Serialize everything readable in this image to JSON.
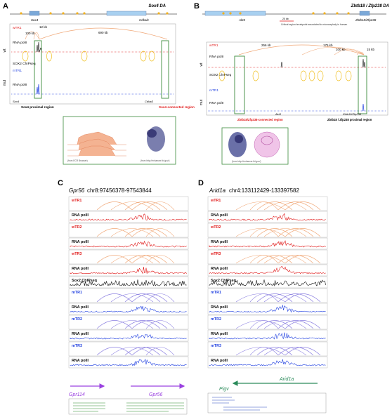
{
  "panels": {
    "A": {
      "letter": "A",
      "da_title": "Sox4 DA",
      "gene_left": "Sox4",
      "gene_right": "Cdkal1",
      "track_wtr1": "wTR1",
      "track_rnapol_1": "RNA polII",
      "track_sox2": "SOX2 ChIPseq",
      "track_mtr1": "mTR1",
      "track_rnapol_2": "RNA polII",
      "group_wt": "wt",
      "group_mut": "mut",
      "dist_1": "12 kb",
      "dist_2": "100 kb",
      "dist_3": "690 kb",
      "axis_left": "Sox4",
      "axis_right": "Cdkal1",
      "region_left": "Sox4 proximal region",
      "region_right": "Sox4-connected region",
      "source_left": "(from ECR Browser)",
      "source_right": "(from http://enhancer.lbl.gov/)"
    },
    "B": {
      "letter": "B",
      "da_title": "Zbtb18 / Zfp238 DA",
      "gene_left": "Akt3",
      "gene_right": "Zbtb18/Zfp238",
      "critical_label": "Critical region breakpoint associated to microcephaly in human",
      "dist_small": "20 kb",
      "track_wtr1": "wTR1",
      "track_rnapol_1": "RNA polII",
      "track_sox2": "SOX2 ChIPseq",
      "track_mtr1": "mTR1",
      "track_rnapol_2": "RNA polII",
      "group_wt": "wt",
      "group_mut": "mut",
      "dist_1": "256 kb",
      "dist_2": "175 kb",
      "dist_3": "100 kb",
      "dist_4": "15 kb",
      "axis_left": "Akt3",
      "axis_right": "Zbtb18/Zfp238",
      "region_left": "Zbtb18/Zfp238-connected region",
      "region_right": "Zbtb18 / Zfp238 proximal region",
      "source": "(from http://enhancer.lbl.gov/)"
    },
    "C": {
      "letter": "C",
      "gene": "Gpr56",
      "coords": "chr8:97456378-97543844",
      "tracks": [
        "wTR1",
        "RNA polII",
        "wTR2",
        "RNA polII",
        "wTR3",
        "RNA polII",
        "Sox2 ChIPseq",
        "mTR1",
        "RNA polII",
        "mTR2",
        "RNA polII",
        "mTR3",
        "RNA polII"
      ],
      "gene_left": "Gpr114",
      "gene_right": "Gpr56"
    },
    "D": {
      "letter": "D",
      "gene": "Arid1a",
      "coords": "chr4:133112429-133397582",
      "tracks": [
        "wTR1",
        "RNA polII",
        "wTR2",
        "RNA polII",
        "wTR3",
        "RNA polII",
        "Sox2 ChIPseq",
        "mTR1",
        "RNA polII",
        "mTR2",
        "RNA polII",
        "mTR3",
        "RNA polII"
      ],
      "gene_left": "Pigv",
      "gene_right": "Arid1a"
    }
  },
  "colors": {
    "wt_red": "#e01818",
    "mut_blue": "#1f3fe0",
    "arc_orange": "#f0a878",
    "arc_purple": "#8a7ee0",
    "green_box": "#3a8a3a",
    "yellow_oval": "#f0c020",
    "gene_blue": "#7aa8d8",
    "arrow_purple": "#9a40e0",
    "arrow_green": "#2a8a5a"
  }
}
